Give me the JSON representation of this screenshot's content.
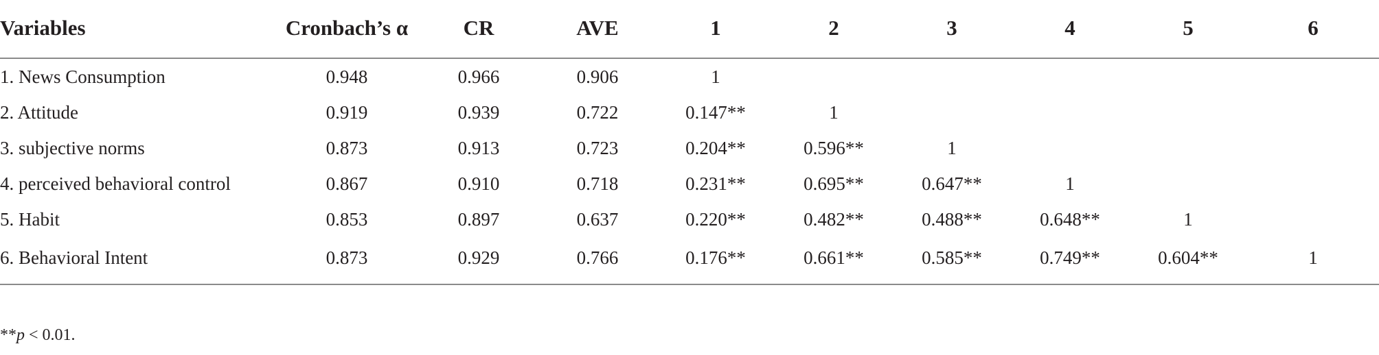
{
  "table": {
    "headers": [
      "Variables",
      "Cronbach’s α",
      "CR",
      "AVE",
      "1",
      "2",
      "3",
      "4",
      "5",
      "6"
    ],
    "rows": [
      [
        "1. News Consumption",
        "0.948",
        "0.966",
        "0.906",
        "1",
        "",
        "",
        "",
        "",
        ""
      ],
      [
        "2. Attitude",
        "0.919",
        "0.939",
        "0.722",
        "0.147**",
        "1",
        "",
        "",
        "",
        ""
      ],
      [
        "3. subjective norms",
        "0.873",
        "0.913",
        "0.723",
        "0.204**",
        "0.596**",
        "1",
        "",
        "",
        ""
      ],
      [
        "4. perceived behavioral control",
        "0.867",
        "0.910",
        "0.718",
        "0.231**",
        "0.695**",
        "0.647**",
        "1",
        "",
        ""
      ],
      [
        "5. Habit",
        "0.853",
        "0.897",
        "0.637",
        "0.220**",
        "0.482**",
        "0.488**",
        "0.648**",
        "1",
        ""
      ],
      [
        "6. Behavioral Intent",
        "0.873",
        "0.929",
        "0.766",
        "0.176**",
        "0.661**",
        "0.585**",
        "0.749**",
        "0.604**",
        "1"
      ]
    ]
  },
  "footnote": {
    "prefix": "**",
    "italic": "p",
    "suffix": " < 0.01."
  }
}
